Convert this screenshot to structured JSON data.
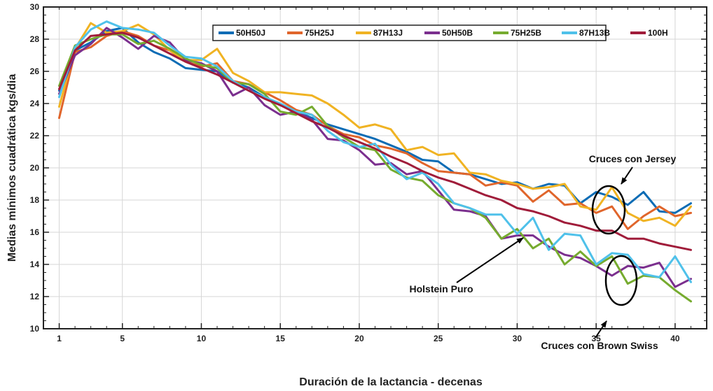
{
  "chart_data": {
    "type": "line",
    "xlabel": "Duración de la lactancia - decenas",
    "ylabel": "Medias mínimos cuadrática kgs/dia",
    "xlim": [
      0,
      42
    ],
    "ylim": [
      10,
      30
    ],
    "xticks": [
      1,
      5,
      10,
      15,
      20,
      25,
      30,
      35,
      40
    ],
    "yticks": [
      10,
      12,
      14,
      16,
      18,
      20,
      22,
      24,
      26,
      28,
      30
    ],
    "grid": true,
    "legend_position": "top-center",
    "x": [
      1,
      2,
      3,
      4,
      5,
      6,
      7,
      8,
      9,
      10,
      11,
      12,
      13,
      14,
      15,
      16,
      17,
      18,
      19,
      20,
      21,
      22,
      23,
      24,
      25,
      26,
      27,
      28,
      29,
      30,
      31,
      32,
      33,
      34,
      35,
      36,
      37,
      38,
      39,
      40,
      41
    ],
    "series": [
      {
        "name": "50H50J",
        "color": "#0b6cb5",
        "values": [
          24.8,
          27.3,
          27.8,
          28.5,
          28.7,
          27.8,
          27.2,
          26.8,
          26.2,
          26.1,
          26.0,
          25.3,
          25.0,
          24.4,
          23.9,
          23.5,
          23.1,
          22.7,
          22.4,
          22.1,
          21.8,
          21.4,
          21.0,
          20.5,
          20.4,
          19.7,
          19.6,
          19.3,
          19.0,
          19.1,
          18.7,
          19.0,
          18.9,
          17.8,
          18.5,
          18.2,
          17.7,
          18.5,
          17.3,
          17.2,
          17.8
        ]
      },
      {
        "name": "75H25J",
        "color": "#e0652b",
        "values": [
          23.1,
          27.2,
          27.5,
          28.2,
          28.5,
          28.2,
          27.6,
          27.3,
          26.6,
          26.3,
          26.5,
          25.4,
          25.2,
          24.7,
          24.2,
          23.6,
          23.3,
          22.6,
          22.1,
          21.9,
          21.4,
          21.2,
          20.9,
          20.3,
          19.8,
          19.7,
          19.6,
          18.9,
          19.1,
          18.9,
          17.9,
          18.6,
          17.7,
          17.8,
          17.2,
          17.6,
          16.2,
          17.0,
          17.6,
          17.0,
          17.2
        ]
      },
      {
        "name": "87H13J",
        "color": "#f0b323",
        "values": [
          23.8,
          27.4,
          29.0,
          28.4,
          28.5,
          28.9,
          28.3,
          27.3,
          26.7,
          26.7,
          27.4,
          25.9,
          25.4,
          24.7,
          24.7,
          24.6,
          24.5,
          24.0,
          23.3,
          22.5,
          22.7,
          22.4,
          21.1,
          21.3,
          20.8,
          20.9,
          19.7,
          19.6,
          19.2,
          19.0,
          18.7,
          18.8,
          19.0,
          17.6,
          17.4,
          18.8,
          17.2,
          16.7,
          16.9,
          16.4,
          17.6
        ]
      },
      {
        "name": "50H50B",
        "color": "#7b2f8e",
        "values": [
          24.6,
          27.0,
          27.7,
          28.7,
          28.1,
          27.4,
          28.2,
          27.8,
          26.7,
          26.5,
          26.0,
          24.5,
          25.0,
          23.9,
          23.3,
          23.5,
          23.0,
          21.8,
          21.7,
          21.1,
          20.2,
          20.3,
          19.6,
          19.8,
          18.6,
          17.4,
          17.3,
          17.0,
          15.6,
          15.8,
          15.8,
          15.1,
          14.6,
          14.4,
          13.9,
          13.3,
          13.9,
          13.8,
          14.1,
          12.6,
          13.1
        ]
      },
      {
        "name": "75H25B",
        "color": "#76ab2f",
        "values": [
          25.1,
          27.6,
          28.0,
          28.3,
          28.3,
          27.7,
          27.9,
          27.4,
          26.8,
          26.4,
          26.2,
          25.3,
          25.2,
          24.6,
          23.5,
          23.3,
          23.8,
          22.6,
          21.9,
          21.3,
          21.1,
          19.9,
          19.4,
          19.2,
          18.3,
          17.8,
          17.5,
          16.9,
          15.6,
          16.2,
          15.0,
          15.6,
          14.0,
          14.8,
          13.9,
          14.5,
          12.8,
          13.3,
          13.2,
          12.4,
          11.7
        ]
      },
      {
        "name": "87H13B",
        "color": "#4fc1ea",
        "values": [
          24.4,
          27.5,
          28.6,
          29.1,
          28.7,
          28.6,
          28.4,
          27.6,
          26.9,
          26.8,
          26.3,
          25.4,
          24.8,
          24.4,
          24.0,
          23.5,
          23.3,
          22.3,
          21.6,
          21.3,
          21.5,
          20.2,
          19.3,
          19.7,
          19.0,
          17.8,
          17.5,
          17.1,
          17.1,
          15.9,
          16.9,
          14.9,
          15.9,
          15.8,
          14.0,
          14.7,
          14.6,
          13.4,
          13.2,
          14.5,
          12.9
        ]
      },
      {
        "name": "100H",
        "color": "#a01c3a",
        "values": [
          24.9,
          27.3,
          28.2,
          28.3,
          28.4,
          28.1,
          27.6,
          27.1,
          26.6,
          26.2,
          25.8,
          25.3,
          24.8,
          24.3,
          23.9,
          23.4,
          22.9,
          22.5,
          22.0,
          21.6,
          21.2,
          20.7,
          20.3,
          19.8,
          19.4,
          19.1,
          18.7,
          18.3,
          18.0,
          17.5,
          17.3,
          17.0,
          16.6,
          16.4,
          16.1,
          16.1,
          15.6,
          15.6,
          15.3,
          15.1,
          14.9
        ]
      }
    ],
    "annotations": [
      {
        "text": "Cruces con Jersey",
        "target_x": 36,
        "target_y": 18.2
      },
      {
        "text": "Holstein Puro",
        "target_x": 30,
        "target_y": 17.4
      },
      {
        "text": "Cruces con Brown Swiss",
        "target_x": 36,
        "target_y": 13.9
      }
    ]
  }
}
